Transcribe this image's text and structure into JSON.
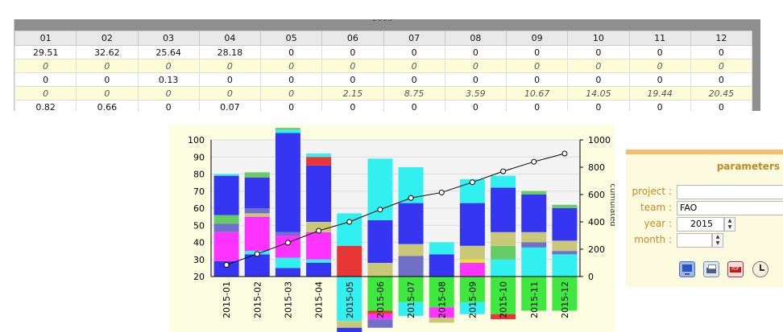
{
  "table": {
    "title_fragment": "2015",
    "headers": [
      "01",
      "02",
      "03",
      "04",
      "05",
      "06",
      "07",
      "08",
      "09",
      "10",
      "11",
      "12"
    ],
    "rows": [
      [
        "29.51",
        "32.62",
        "25.64",
        "28.18",
        "0",
        "0",
        "0",
        "0",
        "0",
        "0",
        "0",
        "0"
      ],
      [
        "0",
        "0",
        "0",
        "0",
        "0",
        "0",
        "0",
        "0",
        "0",
        "0",
        "0",
        "0"
      ],
      [
        "0",
        "0",
        "0.13",
        "0",
        "0",
        "0",
        "0",
        "0",
        "0",
        "0",
        "0",
        "0"
      ],
      [
        "0",
        "0",
        "0",
        "0",
        "0",
        "2.15",
        "8.75",
        "3.59",
        "10.67",
        "14.05",
        "19.44",
        "20.45"
      ],
      [
        "0.82",
        "0.66",
        "0",
        "0.07",
        "0",
        "0",
        "0",
        "0",
        "0",
        "0",
        "0",
        "0"
      ]
    ]
  },
  "chart_data": {
    "type": "bar",
    "stacked": true,
    "categories": [
      "2015-01",
      "2015-02",
      "2015-03",
      "2015-04",
      "2015-05",
      "2015-06",
      "2015-07",
      "2015-08",
      "2015-09",
      "2015-10",
      "2015-11",
      "2015-12"
    ],
    "y_left": {
      "ticks": [
        "100",
        "90",
        "80",
        "70",
        "60",
        "50",
        "40",
        "30",
        "20"
      ],
      "min": 20,
      "max": 100
    },
    "y_right": {
      "ticks": [
        "1000",
        "800",
        "600",
        "400",
        "200",
        "0"
      ],
      "min": 0,
      "max": 1000,
      "label": "cumulated"
    },
    "series_colors": [
      "#3fe83f",
      "#33f0f0",
      "#3535f2",
      "#7070c8",
      "#ff33ff",
      "#c8c878",
      "#f0e030",
      "#e83636",
      "#66cc66",
      "#9999cc",
      "#2a2ae0"
    ],
    "stacks": [
      [
        {
          "c": "#3535f2",
          "v": 9
        },
        {
          "c": "#ff33ff",
          "v": 17
        },
        {
          "c": "#7070c8",
          "v": 5
        },
        {
          "c": "#66cc66",
          "v": 5
        },
        {
          "c": "#3535f2",
          "v": 23
        },
        {
          "c": "#33f0f0",
          "v": 1
        }
      ],
      [
        {
          "c": "#3535f2",
          "v": 13
        },
        {
          "c": "#33f0f0",
          "v": 2
        },
        {
          "c": "#ff33ff",
          "v": 20
        },
        {
          "c": "#c8c878",
          "v": 2
        },
        {
          "c": "#7070c8",
          "v": 3
        },
        {
          "c": "#3535f2",
          "v": 18
        },
        {
          "c": "#66cc66",
          "v": 3
        }
      ],
      [
        {
          "c": "#3535f2",
          "v": 5
        },
        {
          "c": "#33f0f0",
          "v": 6
        },
        {
          "c": "#ff33ff",
          "v": 13
        },
        {
          "c": "#7070c8",
          "v": 2
        },
        {
          "c": "#3535f2",
          "v": 58
        },
        {
          "c": "#33f0f0",
          "v": 2
        },
        {
          "c": "#66cc66",
          "v": 1
        }
      ],
      [
        {
          "c": "#3535f2",
          "v": 8
        },
        {
          "c": "#33f0f0",
          "v": 2
        },
        {
          "c": "#ff33ff",
          "v": 16
        },
        {
          "c": "#c8c878",
          "v": 6
        },
        {
          "c": "#3535f2",
          "v": 33
        },
        {
          "c": "#e83636",
          "v": 5
        },
        {
          "c": "#33f0f0",
          "v": 2
        }
      ],
      [
        {
          "c": "#33f0f0",
          "v": -26
        },
        {
          "c": "#c8c878",
          "v": -4
        },
        {
          "c": "#3535f2",
          "v": -9
        },
        {
          "c": "#e83636",
          "v": 18
        },
        {
          "c": "#33f0f0",
          "v": 19
        }
      ],
      [
        {
          "c": "#3fe83f",
          "v": -20
        },
        {
          "c": "#e83636",
          "v": -2
        },
        {
          "c": "#ff33ff",
          "v": -3
        },
        {
          "c": "#7070c8",
          "v": -5
        },
        {
          "c": "#c8c878",
          "v": 8
        },
        {
          "c": "#3535f2",
          "v": 25
        },
        {
          "c": "#33f0f0",
          "v": 36
        }
      ],
      [
        {
          "c": "#3fe83f",
          "v": -15
        },
        {
          "c": "#33f0f0",
          "v": -8
        },
        {
          "c": "#7070c8",
          "v": 12
        },
        {
          "c": "#c8c878",
          "v": 7
        },
        {
          "c": "#3535f2",
          "v": 24
        },
        {
          "c": "#33f0f0",
          "v": 21
        }
      ],
      [
        {
          "c": "#3fe83f",
          "v": -18
        },
        {
          "c": "#ff33ff",
          "v": -6
        },
        {
          "c": "#c8c878",
          "v": -3
        },
        {
          "c": "#3535f2",
          "v": 13
        },
        {
          "c": "#33f0f0",
          "v": 7
        }
      ],
      [
        {
          "c": "#3fe83f",
          "v": -15
        },
        {
          "c": "#33f0f0",
          "v": -7
        },
        {
          "c": "#ff33ff",
          "v": 8
        },
        {
          "c": "#f0e030",
          "v": 2
        },
        {
          "c": "#c8c878",
          "v": 8
        },
        {
          "c": "#3535f2",
          "v": 25
        },
        {
          "c": "#33f0f0",
          "v": 14
        }
      ],
      [
        {
          "c": "#3fe83f",
          "v": -22
        },
        {
          "c": "#e83636",
          "v": -3
        },
        {
          "c": "#33f0f0",
          "v": 10
        },
        {
          "c": "#66cc66",
          "v": 8
        },
        {
          "c": "#c8c878",
          "v": 8
        },
        {
          "c": "#3535f2",
          "v": 26
        },
        {
          "c": "#33f0f0",
          "v": 7
        }
      ],
      [
        {
          "c": "#3fe83f",
          "v": -20
        },
        {
          "c": "#33f0f0",
          "v": 17
        },
        {
          "c": "#7070c8",
          "v": 3
        },
        {
          "c": "#c8c878",
          "v": 6
        },
        {
          "c": "#3535f2",
          "v": 22
        },
        {
          "c": "#66cc66",
          "v": 2
        }
      ],
      [
        {
          "c": "#3fe83f",
          "v": -20
        },
        {
          "c": "#33f0f0",
          "v": 13
        },
        {
          "c": "#7070c8",
          "v": 2
        },
        {
          "c": "#c8c878",
          "v": 6
        },
        {
          "c": "#3535f2",
          "v": 19
        },
        {
          "c": "#66cc66",
          "v": 2
        }
      ]
    ],
    "cumulative": [
      85,
      165,
      248,
      335,
      400,
      490,
      575,
      615,
      690,
      770,
      840,
      900
    ]
  },
  "params": {
    "title": "parameters",
    "project_label": "project :",
    "project_value": "",
    "team_label": "team :",
    "team_value": "FAO",
    "year_label": "year :",
    "year_value": "2015",
    "month_label": "month :",
    "month_value": "",
    "tools": [
      "screen-icon",
      "print-icon",
      "pdf-icon",
      "clock-icon"
    ]
  }
}
